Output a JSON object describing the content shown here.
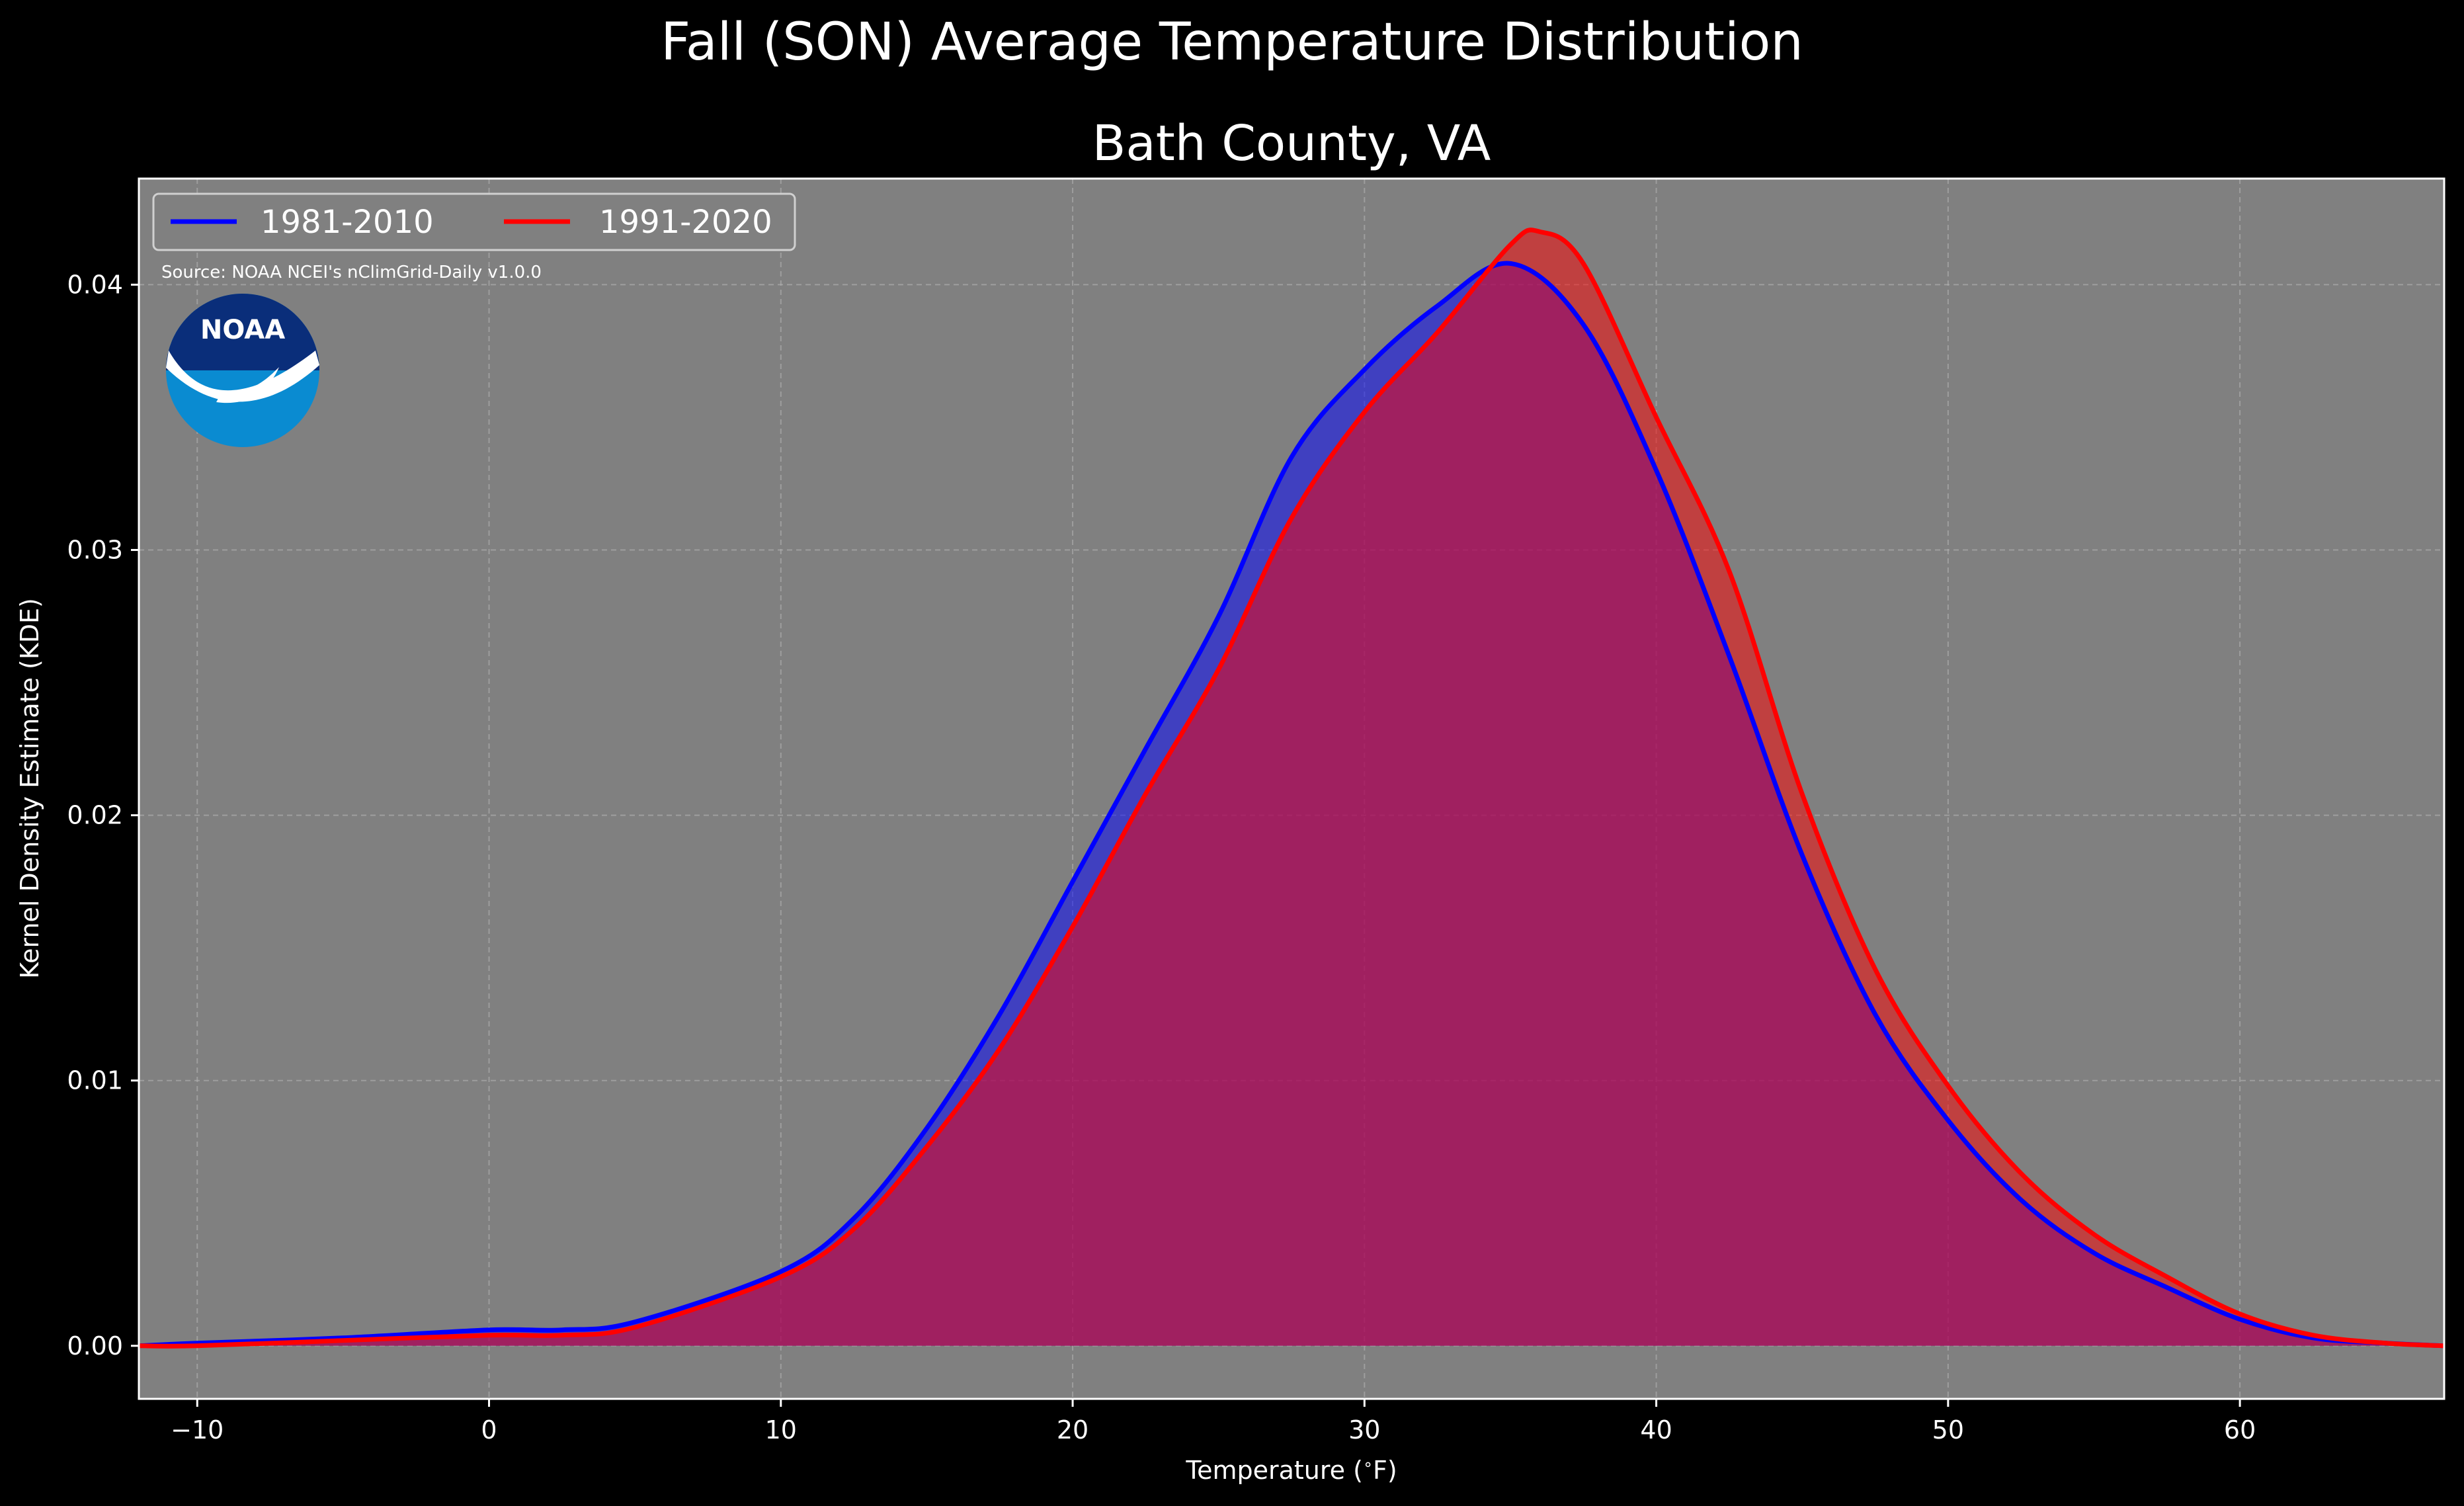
{
  "figure": {
    "suptitle": "Fall (SON) Average Temperature Distribution",
    "source": "Source: NOAA NCEI's nClimGrid-Daily v1.0.0",
    "logo_text": "NOAA"
  },
  "colors": {
    "background": "#000000",
    "plot_background": "#808080",
    "series_1981_2010": "#0000ff",
    "series_1991_2020": "#ff0000",
    "grid": "#b3b3b3",
    "logo_dark": "#0a2e7a",
    "logo_light": "#0a8bd1"
  },
  "chart_data": {
    "type": "area",
    "title": "Bath County, VA",
    "xlabel": "Temperature ($^\\circ$F)",
    "ylabel": "Kernel Density Estimate (KDE)",
    "xlim": [
      -12,
      67
    ],
    "ylim": [
      -0.002,
      0.044
    ],
    "xticks": [
      -10,
      0,
      10,
      20,
      30,
      40,
      50,
      60
    ],
    "yticks": [
      0.0,
      0.01,
      0.02,
      0.03,
      0.04
    ],
    "xtick_labels": [
      "−10",
      "0",
      "10",
      "20",
      "30",
      "40",
      "50",
      "60"
    ],
    "ytick_labels": [
      "0.00",
      "0.01",
      "0.02",
      "0.03",
      "0.04"
    ],
    "grid": true,
    "legend_position": "upper-left",
    "series": [
      {
        "name": "1981-2010",
        "color": "#0000ff",
        "x": [
          -12,
          -10,
          -5,
          0,
          2.5,
          5,
          10,
          12.5,
          15,
          17.5,
          20,
          22.5,
          25,
          27.5,
          30,
          32.5,
          35,
          37.5,
          40,
          42.5,
          45,
          47.5,
          50,
          52.5,
          55,
          57.5,
          60,
          62.5,
          65,
          67
        ],
        "y": [
          0.0,
          0.0001,
          0.0003,
          0.0006,
          0.0006,
          0.0009,
          0.0028,
          0.0048,
          0.0082,
          0.0125,
          0.0175,
          0.0225,
          0.0275,
          0.0335,
          0.0368,
          0.0392,
          0.0408,
          0.0385,
          0.033,
          0.026,
          0.0185,
          0.0125,
          0.0085,
          0.0055,
          0.0035,
          0.0022,
          0.001,
          0.0003,
          0.0001,
          0.0
        ]
      },
      {
        "name": "1991-2020",
        "color": "#ff0000",
        "x": [
          -12,
          -10,
          -5,
          0,
          2.5,
          5,
          10,
          12.5,
          15,
          17.5,
          20,
          22.5,
          25,
          27.5,
          30,
          32.5,
          35,
          36,
          37.5,
          40,
          42.5,
          45,
          47.5,
          50,
          52.5,
          55,
          57.5,
          60,
          62.5,
          65,
          67
        ],
        "y": [
          0.0,
          0.0,
          0.0002,
          0.0004,
          0.0004,
          0.0007,
          0.0026,
          0.0044,
          0.0075,
          0.0112,
          0.0158,
          0.0208,
          0.0255,
          0.0312,
          0.0352,
          0.0382,
          0.0415,
          0.042,
          0.0408,
          0.035,
          0.0292,
          0.0208,
          0.0142,
          0.0098,
          0.0065,
          0.0042,
          0.0026,
          0.0012,
          0.0004,
          0.0001,
          0.0
        ]
      }
    ]
  }
}
